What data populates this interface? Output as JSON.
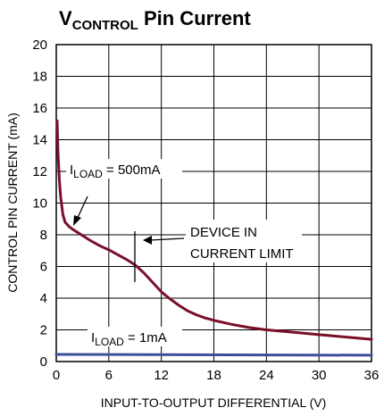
{
  "chart_data": {
    "type": "line",
    "title": {
      "main": "V",
      "subscript": "CONTROL",
      "rest": " Pin Current"
    },
    "xlabel": "INPUT-TO-OUTPUT DIFFERENTIAL (V)",
    "ylabel": "CONTROL PIN CURRENT (mA)",
    "xlim": [
      0,
      36
    ],
    "ylim": [
      0,
      20
    ],
    "xticks": [
      "0",
      "6",
      "12",
      "18",
      "24",
      "30",
      "36"
    ],
    "yticks": [
      "0",
      "2",
      "4",
      "6",
      "8",
      "10",
      "12",
      "14",
      "16",
      "18",
      "20"
    ],
    "grid": true,
    "series": [
      {
        "name": "ILOAD = 500mA",
        "color": "#7a0f2a",
        "x": [
          0.1,
          0.2,
          0.35,
          0.5,
          0.75,
          1.0,
          1.5,
          2,
          3,
          4,
          5,
          6,
          7,
          8,
          9,
          10,
          11,
          12,
          13,
          14,
          15,
          16,
          17,
          18,
          20,
          22,
          24,
          26,
          28,
          30,
          32,
          34,
          36
        ],
        "y": [
          15.2,
          13.2,
          11.5,
          10.4,
          9.3,
          8.8,
          8.5,
          8.3,
          7.95,
          7.6,
          7.3,
          7.05,
          6.75,
          6.45,
          6.1,
          5.6,
          5.0,
          4.4,
          3.95,
          3.55,
          3.2,
          2.95,
          2.75,
          2.6,
          2.35,
          2.15,
          2.0,
          1.9,
          1.8,
          1.7,
          1.6,
          1.5,
          1.4
        ]
      },
      {
        "name": "ILOAD = 1mA",
        "color": "#3b4f99",
        "x": [
          0,
          36
        ],
        "y": [
          0.45,
          0.4
        ]
      }
    ],
    "annotations": [
      {
        "text_main": "I",
        "text_sub": "LOAD",
        "text_rest": " = 500mA"
      },
      {
        "text_main": "I",
        "text_sub": "LOAD",
        "text_rest": " = 1mA"
      },
      {
        "line1": "DEVICE IN",
        "line2": "CURRENT LIMIT"
      }
    ]
  }
}
